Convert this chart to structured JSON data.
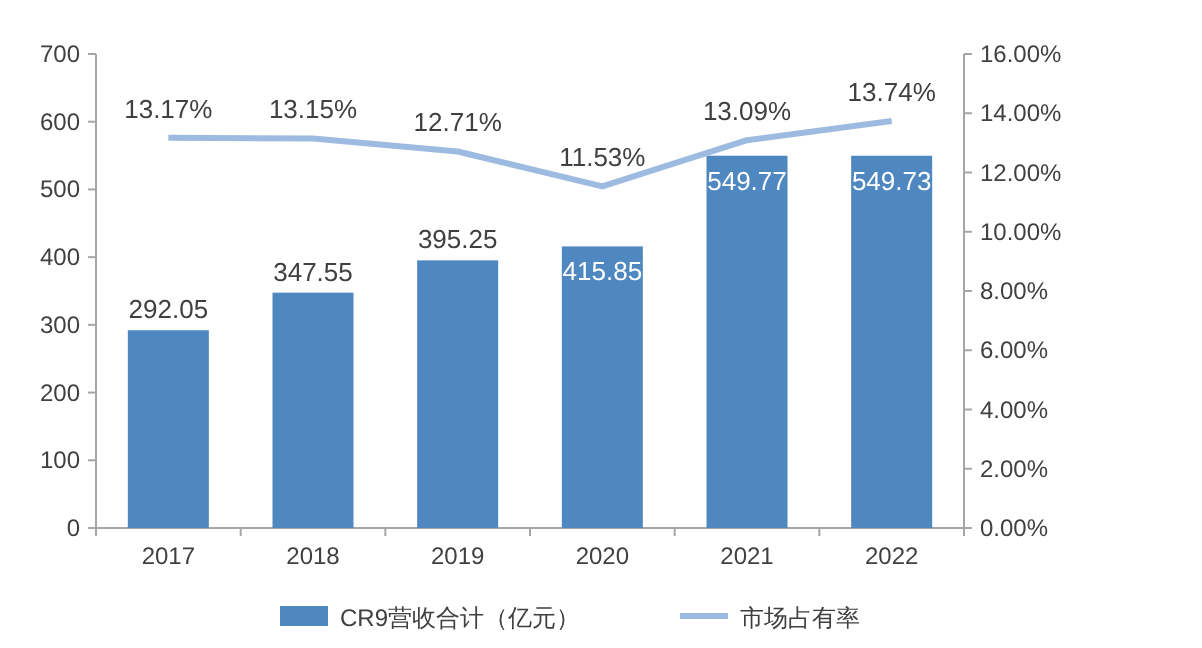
{
  "chart_data": {
    "type": "bar",
    "categories": [
      "2017",
      "2018",
      "2019",
      "2020",
      "2021",
      "2022"
    ],
    "series": [
      {
        "name": "CR9营收合计（亿元）",
        "color": "#4f88c0",
        "values": [
          292.05,
          347.55,
          395.25,
          415.85,
          549.77,
          549.73
        ],
        "value_labels": [
          "292.05",
          "347.55",
          "395.25",
          "415.85",
          "549.77",
          "549.73"
        ]
      },
      {
        "name": "市场占有率",
        "type": "line",
        "axis": "y2",
        "color": "#9dbbe1",
        "values": [
          13.17,
          13.15,
          12.71,
          11.53,
          13.09,
          13.74
        ],
        "value_labels": [
          "13.17%",
          "13.15%",
          "12.71%",
          "11.53%",
          "13.09%",
          "13.74%"
        ]
      }
    ],
    "ylim": [
      0,
      700
    ],
    "yticks": [
      0,
      100,
      200,
      300,
      400,
      500,
      600,
      700
    ],
    "y2lim": [
      0,
      16
    ],
    "y2ticks": [
      {
        "value": 0,
        "label": "0.00%"
      },
      {
        "value": 2,
        "label": "2.00%"
      },
      {
        "value": 4,
        "label": "4.00%"
      },
      {
        "value": 6,
        "label": "6.00%"
      },
      {
        "value": 8,
        "label": "8.00%"
      },
      {
        "value": 10,
        "label": "10.00%"
      },
      {
        "value": 12,
        "label": "12.00%"
      },
      {
        "value": 14,
        "label": "14.00%"
      },
      {
        "value": 16,
        "label": "16.00%"
      }
    ],
    "legend": "bottom",
    "grid": false,
    "marker": "none",
    "line_style": "solid"
  }
}
